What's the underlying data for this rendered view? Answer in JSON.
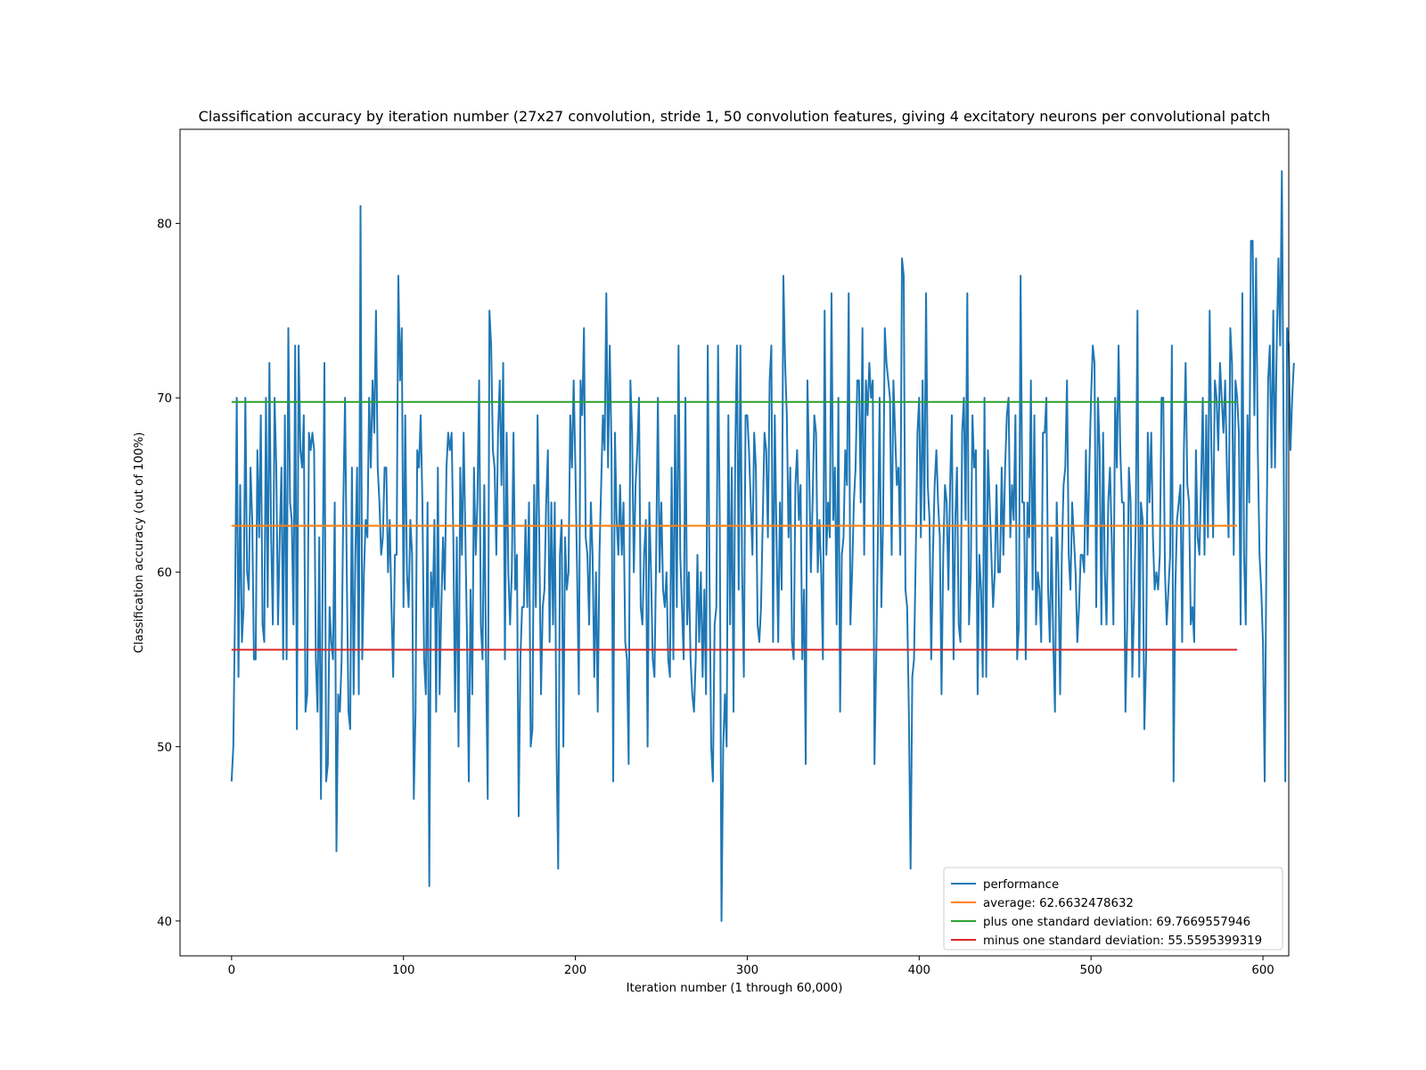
{
  "chart_data": {
    "type": "line",
    "title": "Classification accuracy by iteration number (27x27 convolution, stride 1, 50 convolution features, giving 4 excitatory neurons per convolutional patch",
    "xlabel": "Iteration number (1 through 60,000)",
    "ylabel": "Classification accuracy (out of 100%)",
    "xlim": [
      -30,
      615
    ],
    "ylim": [
      38,
      85.4
    ],
    "xticks": [
      0,
      100,
      200,
      300,
      400,
      500,
      600
    ],
    "yticks": [
      40,
      50,
      60,
      70,
      80
    ],
    "grid": false,
    "legend_position": "lower right",
    "series": [
      {
        "name": "performance",
        "color": "#1f77b4",
        "x_start": 0,
        "x_step": 1,
        "values": [
          48,
          50,
          58,
          70,
          54,
          65,
          56,
          58,
          70,
          60,
          59,
          66,
          63,
          55,
          55,
          67,
          62,
          69,
          57,
          56,
          70,
          58,
          72,
          62,
          57,
          70,
          66,
          57,
          62,
          66,
          55,
          69,
          55,
          74,
          64,
          63,
          57,
          73,
          51,
          73,
          67,
          66,
          69,
          52,
          53,
          68,
          67,
          68,
          67,
          55,
          52,
          62,
          47,
          60,
          72,
          48,
          49,
          58,
          56,
          55,
          64,
          44,
          53,
          52,
          55,
          64,
          70,
          60,
          52,
          51,
          66,
          53,
          61,
          66,
          53,
          81,
          55,
          60,
          63,
          62,
          70,
          66,
          71,
          68,
          75,
          66,
          64,
          61,
          62,
          66,
          66,
          60,
          63,
          58,
          54,
          61,
          61,
          77,
          71,
          74,
          58,
          69,
          60,
          58,
          63,
          61,
          47,
          52,
          67,
          66,
          69,
          64,
          55,
          53,
          64,
          42,
          60,
          58,
          63,
          52,
          66,
          53,
          58,
          62,
          59,
          66,
          68,
          67,
          68,
          62,
          52,
          62,
          50,
          66,
          61,
          68,
          62,
          56,
          48,
          59,
          53,
          66,
          61,
          64,
          71,
          57,
          55,
          65,
          55,
          47,
          75,
          73,
          67,
          66,
          61,
          68,
          71,
          65,
          72,
          55,
          68,
          60,
          57,
          60,
          68,
          59,
          61,
          46,
          55,
          58,
          58,
          63,
          58,
          64,
          50,
          51,
          65,
          58,
          69,
          62,
          53,
          58,
          59,
          64,
          67,
          56,
          64,
          57,
          64,
          50,
          43,
          61,
          63,
          50,
          62,
          59,
          60,
          69,
          66,
          71,
          66,
          60,
          53,
          71,
          69,
          74,
          62,
          61,
          57,
          64,
          61,
          54,
          60,
          52,
          61,
          65,
          69,
          67,
          76,
          66,
          73,
          67,
          48,
          68,
          63,
          61,
          65,
          61,
          64,
          56,
          55,
          49,
          71,
          68,
          60,
          65,
          67,
          70,
          58,
          57,
          61,
          63,
          50,
          64,
          60,
          55,
          54,
          61,
          70,
          60,
          64,
          59,
          58,
          60,
          55,
          54,
          66,
          55,
          69,
          58,
          73,
          61,
          58,
          55,
          70,
          57,
          60,
          55,
          53,
          52,
          55,
          61,
          56,
          60,
          54,
          59,
          53,
          73,
          60,
          50,
          48,
          57,
          58,
          73,
          63,
          40,
          50,
          53,
          50,
          69,
          57,
          66,
          52,
          67,
          73,
          59,
          73,
          60,
          54,
          69,
          69,
          67,
          64,
          61,
          68,
          66,
          57,
          56,
          58,
          63,
          68,
          67,
          62,
          71,
          73,
          56,
          69,
          62,
          56,
          64,
          59,
          77,
          72,
          69,
          62,
          66,
          56,
          55,
          65,
          67,
          63,
          65,
          55,
          59,
          49,
          71,
          66,
          60,
          64,
          69,
          68,
          60,
          63,
          60,
          55,
          75,
          61,
          64,
          62,
          76,
          63,
          66,
          57,
          70,
          52,
          61,
          62,
          67,
          65,
          76,
          57,
          60,
          64,
          66,
          71,
          71,
          64,
          74,
          61,
          71,
          69,
          72,
          70,
          71,
          49,
          55,
          62,
          70,
          58,
          63,
          74,
          72,
          71,
          70,
          61,
          71,
          68,
          65,
          66,
          61,
          78,
          77,
          59,
          58,
          52,
          43,
          54,
          55,
          61,
          68,
          70,
          62,
          71,
          63,
          76,
          65,
          63,
          55,
          61,
          65,
          67,
          64,
          62,
          53,
          61,
          65,
          64,
          59,
          65,
          69,
          55,
          63,
          66,
          57,
          56,
          68,
          70,
          63,
          76,
          57,
          60,
          69,
          66,
          67,
          53,
          61,
          59,
          54,
          70,
          54,
          67,
          64,
          61,
          58,
          60,
          65,
          60,
          60,
          66,
          61,
          66,
          69,
          70,
          62,
          65,
          63,
          69,
          55,
          57,
          77,
          64,
          64,
          55,
          64,
          62,
          71,
          59,
          69,
          57,
          60,
          59,
          56,
          68,
          68,
          70,
          59,
          56,
          62,
          56,
          52,
          64,
          60,
          53,
          61,
          65,
          66,
          71,
          61,
          59,
          64,
          62,
          60,
          56,
          58,
          61,
          61,
          60,
          67,
          61,
          66,
          70,
          73,
          72,
          58,
          70,
          67,
          57,
          68,
          60,
          57,
          64,
          66,
          62,
          57,
          70,
          66,
          73,
          67,
          64,
          64,
          52,
          57,
          66,
          64,
          54,
          58,
          63,
          75,
          54,
          64,
          63,
          51,
          55,
          68,
          64,
          68,
          62,
          59,
          60,
          59,
          61,
          70,
          70,
          60,
          57,
          59,
          61,
          73,
          48,
          59,
          63,
          64,
          65,
          56,
          67,
          72,
          65,
          64,
          57,
          58,
          56,
          67,
          62,
          61,
          65,
          70,
          61,
          69,
          62,
          75,
          67,
          62,
          71,
          70,
          67,
          72,
          70,
          68,
          71,
          66,
          62,
          74,
          72,
          61,
          71,
          70,
          68,
          57,
          76,
          61,
          57,
          69,
          64,
          79,
          79,
          69,
          78,
          67,
          61,
          59,
          56,
          48,
          61,
          71,
          73,
          66,
          75,
          66,
          73,
          78,
          73,
          83,
          68,
          48,
          74,
          73,
          67,
          70,
          72
        ]
      },
      {
        "name": "average: 62.6632478632",
        "color": "#ff7f0e",
        "x": [
          0,
          585
        ],
        "y": [
          62.6632478632,
          62.6632478632
        ]
      },
      {
        "name": "plus one standard deviation: 69.7669557946",
        "color": "#2ca02c",
        "x": [
          0,
          585
        ],
        "y": [
          69.7669557946,
          69.7669557946
        ]
      },
      {
        "name": "minus one standard deviation: 55.5595399319",
        "color": "#d62728",
        "x": [
          0,
          585
        ],
        "y": [
          55.5595399319,
          55.5595399319
        ]
      }
    ]
  }
}
